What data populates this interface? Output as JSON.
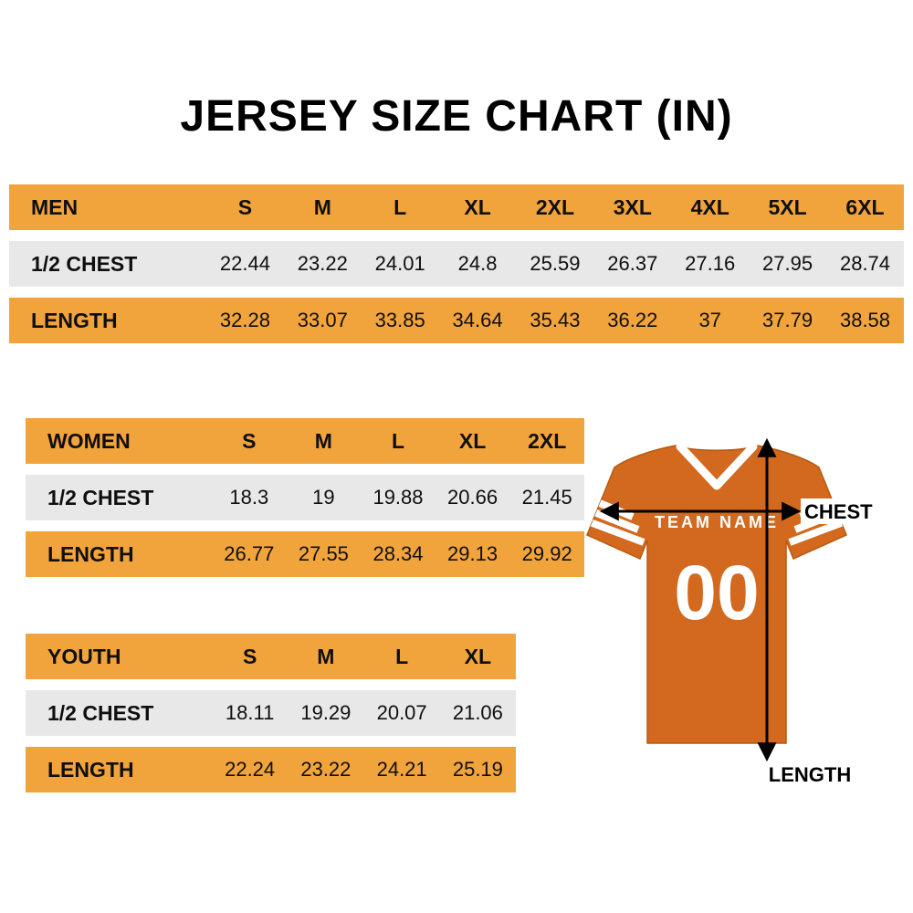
{
  "title": "JERSEY SIZE CHART (IN)",
  "colors": {
    "header_bg": "#F2A43C",
    "row_light": "#E8E8E8",
    "jersey_orange": "#D2691E"
  },
  "tables": [
    {
      "id": "men",
      "header": [
        "MEN",
        "S",
        "M",
        "L",
        "XL",
        "2XL",
        "3XL",
        "4XL",
        "5XL",
        "6XL"
      ],
      "rows": [
        {
          "label": "1/2 CHEST",
          "values": [
            "22.44",
            "23.22",
            "24.01",
            "24.8",
            "25.59",
            "26.37",
            "27.16",
            "27.95",
            "28.74"
          ]
        },
        {
          "label": "LENGTH",
          "values": [
            "32.28",
            "33.07",
            "33.85",
            "34.64",
            "35.43",
            "36.22",
            "37",
            "37.79",
            "38.58"
          ]
        }
      ]
    },
    {
      "id": "women",
      "header": [
        "WOMEN",
        "S",
        "M",
        "L",
        "XL",
        "2XL"
      ],
      "rows": [
        {
          "label": "1/2 CHEST",
          "values": [
            "18.3",
            "19",
            "19.88",
            "20.66",
            "21.45"
          ]
        },
        {
          "label": "LENGTH",
          "values": [
            "26.77",
            "27.55",
            "28.34",
            "29.13",
            "29.92"
          ]
        }
      ]
    },
    {
      "id": "youth",
      "header": [
        "YOUTH",
        "S",
        "M",
        "L",
        "XL"
      ],
      "rows": [
        {
          "label": "1/2 CHEST",
          "values": [
            "18.11",
            "19.29",
            "20.07",
            "21.06"
          ]
        },
        {
          "label": "LENGTH",
          "values": [
            "22.24",
            "23.22",
            "24.21",
            "25.19"
          ]
        }
      ]
    }
  ],
  "jersey": {
    "team_name": "TEAM NAME",
    "number": "00",
    "chest_label": "CHEST",
    "length_label": "LENGTH"
  }
}
